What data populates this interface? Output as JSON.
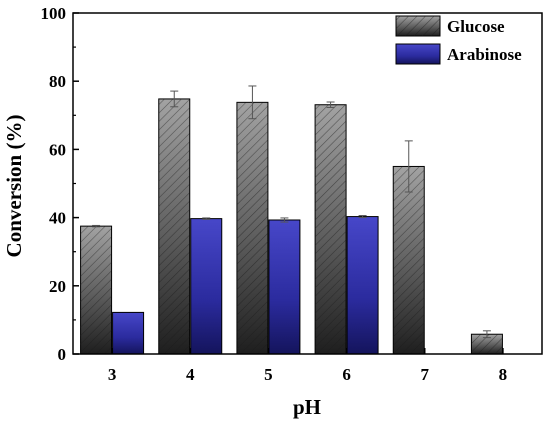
{
  "chart_data": {
    "type": "bar",
    "xlabel": "pH",
    "ylabel": "Conversion (%)",
    "categories": [
      "3",
      "4",
      "5",
      "6",
      "7",
      "8"
    ],
    "ylim": [
      0,
      100
    ],
    "yticks": [
      0,
      20,
      40,
      60,
      80,
      100
    ],
    "grid": false,
    "legend_position": "top-right",
    "series": [
      {
        "name": "Glucose",
        "color": "#6e6e6e",
        "pattern": "hatched-gradient",
        "values": [
          37.5,
          74.8,
          73.8,
          73.1,
          55.0,
          5.8
        ],
        "errors": [
          0.2,
          2.3,
          4.8,
          0.8,
          7.5,
          1.0
        ]
      },
      {
        "name": "Arabinose",
        "color": "#2a2aa8",
        "pattern": "gradient",
        "values": [
          12.2,
          39.7,
          39.3,
          40.3,
          null,
          null
        ],
        "errors": [
          0,
          0.2,
          0.6,
          0.3,
          null,
          null
        ]
      }
    ]
  }
}
